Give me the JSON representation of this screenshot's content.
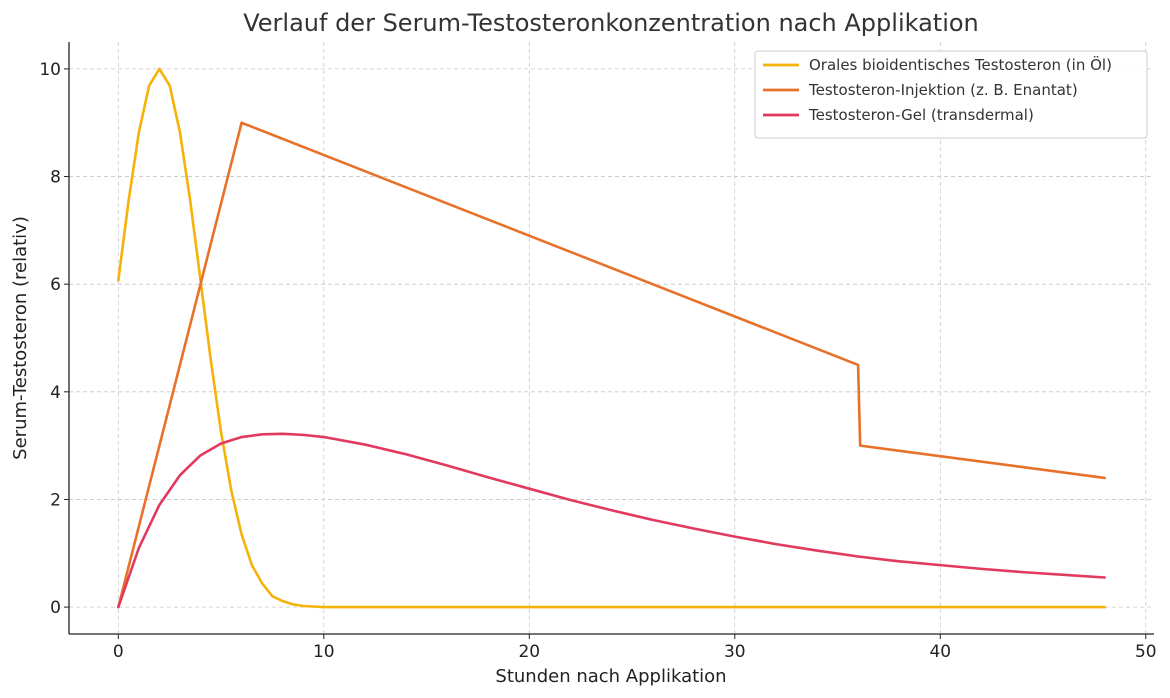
{
  "chart_data": {
    "type": "line",
    "title": "Verlauf der Serum-Testosteronkonzentration nach Applikation",
    "xlabel": "Stunden nach Applikation",
    "ylabel": "Serum-Testosteron (relativ)",
    "xlim": [
      -2.4,
      50.4
    ],
    "ylim": [
      -0.5,
      10.5
    ],
    "xticks": [
      0,
      10,
      20,
      30,
      40,
      50
    ],
    "yticks": [
      0,
      2,
      4,
      6,
      8,
      10
    ],
    "grid": true,
    "grid_style": "dashed",
    "legend_position": "top-right",
    "series": [
      {
        "name": "Orales bioidentisches Testosteron (in Öl)",
        "color": "#F5B30A",
        "x": [
          0,
          0.5,
          1,
          1.5,
          2,
          2.5,
          3,
          3.5,
          4,
          4.5,
          5,
          5.5,
          6,
          6.5,
          7,
          7.5,
          8,
          8.5,
          9,
          10,
          12,
          15,
          20,
          25,
          30,
          35,
          40,
          45,
          48
        ],
        "y": [
          6.07,
          7.55,
          8.82,
          9.69,
          10.0,
          9.69,
          8.82,
          7.55,
          6.07,
          4.59,
          3.25,
          2.16,
          1.35,
          0.78,
          0.44,
          0.2,
          0.11,
          0.05,
          0.02,
          0.0,
          0.0,
          0.0,
          0.0,
          0.0,
          0.0,
          0.0,
          0.0,
          0.0,
          0.0
        ]
      },
      {
        "name": "Testosteron-Injektion (z. B. Enantat)",
        "color": "#E8712A",
        "x": [
          0,
          6,
          36,
          36.1,
          48
        ],
        "y": [
          0,
          9.0,
          4.5,
          3.0,
          2.4
        ]
      },
      {
        "name": "Testosteron-Gel (transdermal)",
        "color": "#E23A5E",
        "x": [
          0,
          1,
          2,
          3,
          4,
          5,
          6,
          7,
          8,
          9,
          10,
          12,
          14,
          16,
          18,
          20,
          22,
          24,
          26,
          28,
          30,
          32,
          34,
          36,
          38,
          40,
          42,
          44,
          46,
          48
        ],
        "y": [
          0,
          1.1,
          1.9,
          2.45,
          2.82,
          3.04,
          3.16,
          3.21,
          3.22,
          3.2,
          3.16,
          3.02,
          2.84,
          2.63,
          2.41,
          2.2,
          1.99,
          1.8,
          1.62,
          1.46,
          1.31,
          1.17,
          1.05,
          0.94,
          0.85,
          0.78,
          0.71,
          0.65,
          0.6,
          0.55
        ]
      }
    ]
  }
}
